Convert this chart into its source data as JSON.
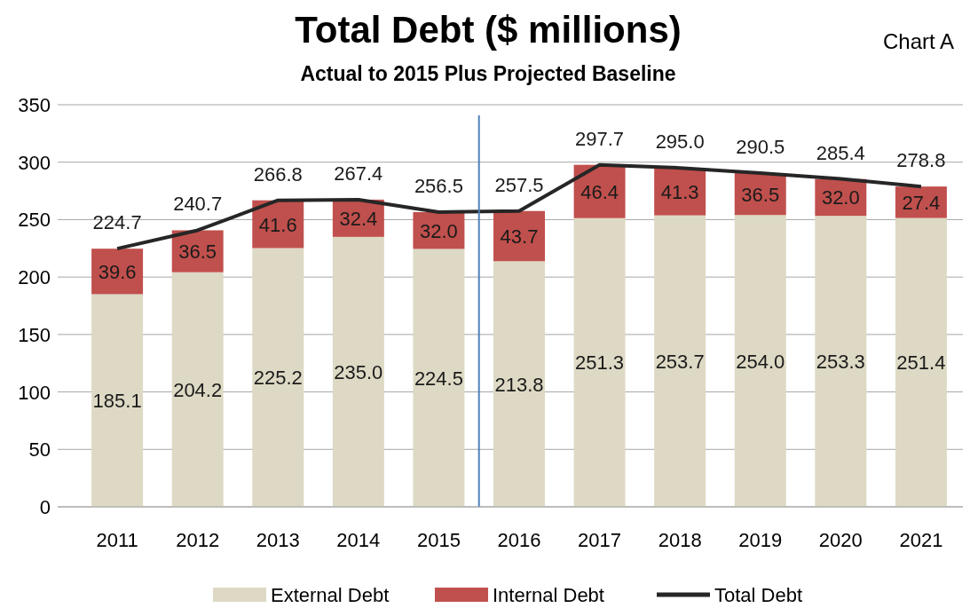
{
  "chart_data": {
    "type": "bar",
    "title": "Total Debt ($ millions)",
    "subtitle": "Actual to 2015 Plus Projected Baseline",
    "annotations": [
      "Chart A"
    ],
    "categories": [
      "2011",
      "2012",
      "2013",
      "2014",
      "2015",
      "2016",
      "2017",
      "2018",
      "2019",
      "2020",
      "2021"
    ],
    "stacked": true,
    "series": [
      {
        "name": "External Debt",
        "color": "#ddd9c4",
        "values": [
          185.1,
          204.2,
          225.2,
          235,
          224.5,
          213.8,
          251.3,
          253.7,
          254,
          253.3,
          251.4
        ],
        "value_labels": [
          "185.1",
          "204.2",
          "225.2",
          "235.0",
          "224.5",
          "213.8",
          "251.3",
          "253.7",
          "254.0",
          "253.3",
          "251.4"
        ]
      },
      {
        "name": "Internal Debt",
        "color": "#c0504d",
        "values": [
          39.6,
          36.5,
          41.6,
          32.4,
          32,
          43.7,
          46.4,
          41.3,
          36.5,
          32,
          27.4
        ],
        "value_labels": [
          "39.6",
          "36.5",
          "41.6",
          "32.4",
          "32.0",
          "43.7",
          "46.4",
          "41.3",
          "36.5",
          "32.0",
          "27.4"
        ]
      },
      {
        "name": "Total Debt",
        "type": "line",
        "color": "#262626",
        "values": [
          224.7,
          240.7,
          266.8,
          267.4,
          256.5,
          257.5,
          297.7,
          295,
          290.5,
          285.4,
          278.8
        ],
        "value_labels": [
          "224.7",
          "240.7",
          "266.8",
          "267.4",
          "256.5",
          "257.5",
          "297.7",
          "295.0",
          "290.5",
          "285.4",
          "278.8"
        ]
      }
    ],
    "ylim": [
      0,
      350
    ],
    "yticks": [
      0,
      50,
      100,
      150,
      200,
      250,
      300,
      350
    ],
    "grid": "y",
    "legend": "bottom",
    "marker": "none",
    "ref_lines": [
      {
        "axis": "x",
        "value": "2015",
        "color": "#4f81bd"
      }
    ]
  }
}
